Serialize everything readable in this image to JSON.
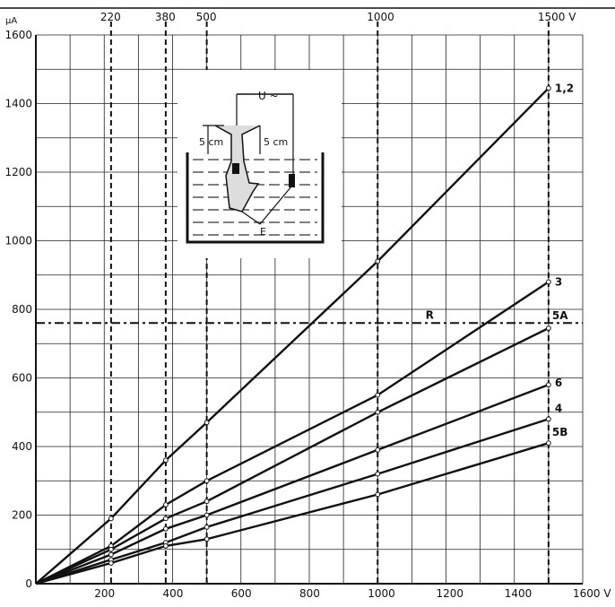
{
  "chart_data": {
    "type": "line",
    "x_unit": "V",
    "y_unit": "µA",
    "xlim": [
      0,
      1600
    ],
    "ylim": [
      0,
      1600
    ],
    "x_ticks": [
      "200",
      "400",
      "600",
      "800",
      "1000",
      "1200",
      "1400",
      "1600 V"
    ],
    "y_ticks": [
      "200",
      "400",
      "600",
      "800",
      "1000",
      "1200",
      "1400",
      "1600"
    ],
    "y_unit_label": "µA",
    "grid": true,
    "top_axis": {
      "values": [
        220,
        380,
        500,
        1000,
        1500
      ],
      "labels": [
        "220",
        "380",
        "500",
        "1000",
        "1500 V"
      ]
    },
    "reference_line": {
      "label": "R",
      "y": 760
    },
    "series": [
      {
        "name": "1,2",
        "x": [
          0,
          220,
          380,
          500,
          1000,
          1500
        ],
        "y": [
          0,
          190,
          360,
          470,
          940,
          1445
        ]
      },
      {
        "name": "3",
        "x": [
          0,
          220,
          380,
          500,
          1000,
          1500
        ],
        "y": [
          0,
          110,
          230,
          300,
          550,
          880
        ]
      },
      {
        "name": "5A",
        "x": [
          0,
          220,
          380,
          500,
          1000,
          1500
        ],
        "y": [
          0,
          100,
          190,
          240,
          500,
          745
        ]
      },
      {
        "name": "6",
        "x": [
          0,
          220,
          380,
          500,
          1000,
          1500
        ],
        "y": [
          0,
          85,
          160,
          200,
          390,
          580
        ]
      },
      {
        "name": "4",
        "x": [
          0,
          220,
          380,
          500,
          1000,
          1500
        ],
        "y": [
          0,
          70,
          120,
          165,
          320,
          480
        ]
      },
      {
        "name": "5B",
        "x": [
          0,
          220,
          380,
          500,
          1000,
          1500
        ],
        "y": [
          0,
          60,
          110,
          130,
          260,
          410
        ]
      }
    ]
  },
  "inset": {
    "voltage_label": "U ~",
    "depth_left": "5 cm",
    "depth_right": "5 cm",
    "electrode_label": "E"
  }
}
